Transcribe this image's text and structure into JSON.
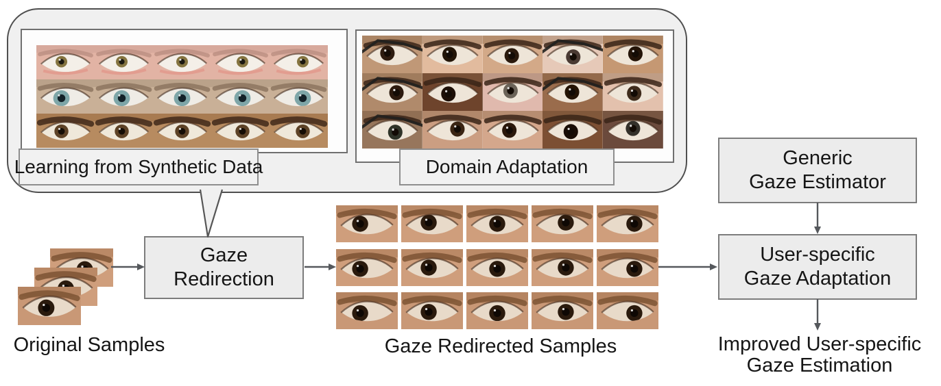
{
  "bubble": {
    "panels": [
      {
        "label": "Learning from Synthetic Data",
        "grid": {
          "rows": 3,
          "cols": 5,
          "variant": "synthetic"
        }
      },
      {
        "label": "Domain Adaptation",
        "grid": {
          "rows": 3,
          "cols": 5,
          "variant": "domain"
        }
      }
    ]
  },
  "nodes": {
    "gaze_redirection": {
      "lines": [
        "Gaze",
        "Redirection"
      ]
    },
    "generic_estimator": {
      "lines": [
        "Generic",
        "Gaze Estimator"
      ]
    },
    "user_adaptation": {
      "lines": [
        "User-specific",
        "Gaze Adaptation"
      ]
    }
  },
  "captions": {
    "original": "Original Samples",
    "redirected": "Gaze Redirected Samples",
    "improved_lines": [
      "Improved User-specific",
      "Gaze Estimation"
    ]
  },
  "original_stack": {
    "count": 3,
    "variant": "real"
  },
  "redirected_grid": {
    "rows": 3,
    "cols": 5,
    "variant": "real"
  },
  "colors": {
    "bubble_fill": "#f0f0f0",
    "bubble_border": "#4f4f4f",
    "panel_border": "#6f6f6f",
    "box_fill": "#ececec",
    "box_border": "#7c7c7c",
    "arrow": "#55585c",
    "text": "#151515"
  },
  "eye_palettes": {
    "synthetic": {
      "rows": [
        {
          "skin": "#e2b3a4",
          "shade": "#c79c90",
          "sclera": "#f4efe8",
          "iris": "#857440",
          "pupil": "#1c1910",
          "brow": "#bd9184",
          "browW": 7,
          "r": 10,
          "underlid": "#e2958a"
        },
        {
          "skin": "#c9b097",
          "shade": "#a68e79",
          "sclera": "#efece6",
          "iris": "#7ea6a8",
          "pupil": "#132128",
          "brow": "#8d765f",
          "browW": 8,
          "r": 14
        },
        {
          "skin": "#b78b60",
          "shade": "#90653d",
          "sclera": "#efe8da",
          "iris": "#5d4226",
          "pupil": "#150d05",
          "brow": "#41291a",
          "browW": 10,
          "r": 12
        }
      ]
    },
    "domain": {
      "base": {
        "shade": "#8a6648",
        "sclera": "#eee5d8",
        "pupil": "#130b05",
        "brow": "#3a2417",
        "browW": 8,
        "r": 12
      },
      "tiles": [
        {
          "skin": "#c09877",
          "iris": "#2e1c10"
        },
        {
          "skin": "#e2bb9e",
          "iris": "#231507"
        },
        {
          "skin": "#d3a988",
          "iris": "#2a190c"
        },
        {
          "skin": "#e6c9b8",
          "iris": "#4a3a33"
        },
        {
          "skin": "#c59873",
          "iris": "#241408"
        },
        {
          "skin": "#b08a6b",
          "iris": "#2c1a0e"
        },
        {
          "skin": "#6e442c",
          "iris": "#1d0f07"
        },
        {
          "skin": "#e0b9ad",
          "iris": "#6b6358"
        },
        {
          "skin": "#9a6c4c",
          "iris": "#241304"
        },
        {
          "skin": "#e3c1ad",
          "iris": "#3f2c1c"
        },
        {
          "skin": "#97765c",
          "iris": "#2f3328"
        },
        {
          "skin": "#cb9e82",
          "iris": "#3a2413"
        },
        {
          "skin": "#d4a78c",
          "iris": "#2a180b"
        },
        {
          "skin": "#7c4f33",
          "iris": "#190d05"
        },
        {
          "skin": "#6b4a3c",
          "iris": "#33302a"
        }
      ],
      "glasses_tiles": [
        0,
        3,
        5,
        8,
        10
      ]
    },
    "real": {
      "rows": [
        {
          "skin": "#cf9e7c",
          "shade": "#9c6a47",
          "sclera": "#e8dac9",
          "iris": "#2a1a0d",
          "pupil": "#0e0804",
          "brow": "#7d5434",
          "browW": 9,
          "r": 13
        },
        {
          "skin": "#cf9e7c",
          "shade": "#9c6a47",
          "sclera": "#e8dac9",
          "iris": "#2a1a0d",
          "pupil": "#0e0804",
          "brow": "#7d5434",
          "browW": 9,
          "r": 13
        },
        {
          "skin": "#c99876",
          "shade": "#986644",
          "sclera": "#e8dac9",
          "iris": "#2a1a0d",
          "pupil": "#0e0804",
          "brow": "#7d5434",
          "browW": 9,
          "r": 13
        }
      ]
    }
  }
}
